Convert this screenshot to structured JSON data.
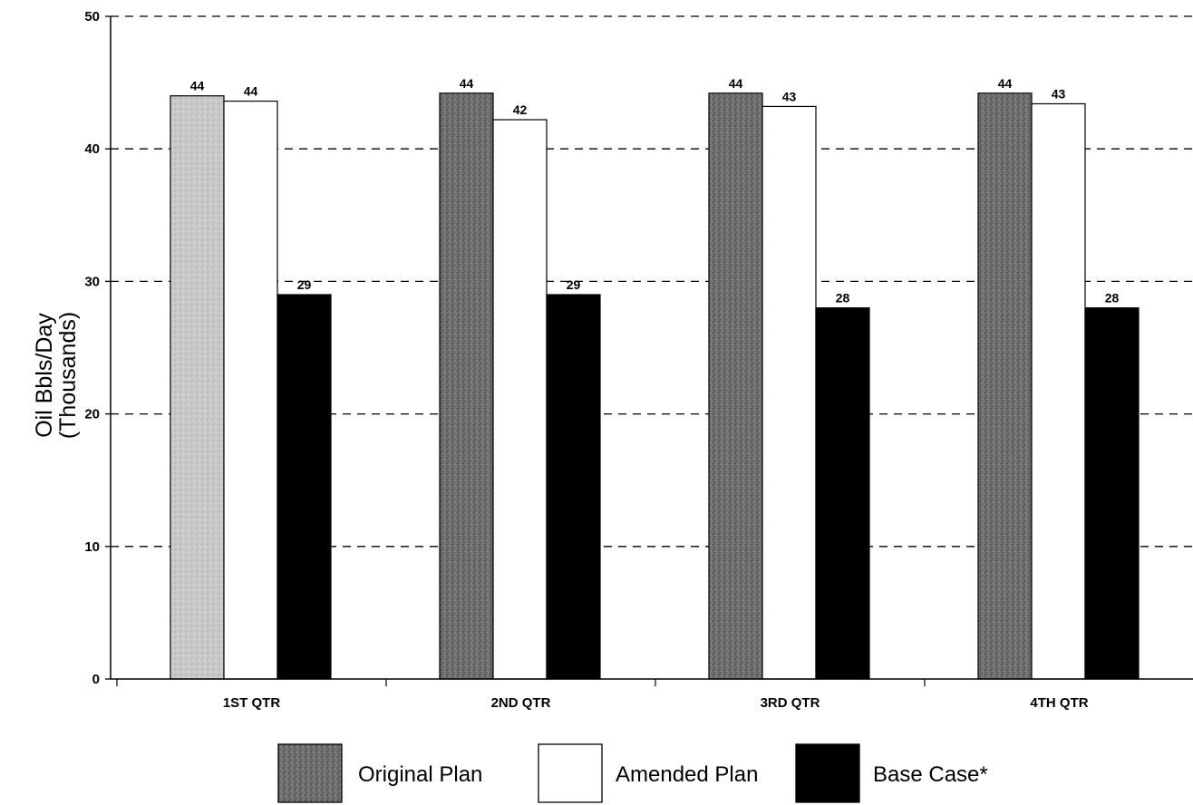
{
  "chart_data": {
    "type": "bar",
    "categories": [
      "1ST QTR",
      "2ND QTR",
      "3RD QTR",
      "4TH QTR"
    ],
    "series": [
      {
        "name": "Original Plan",
        "values": [
          44,
          44.2,
          44.2,
          44.2
        ],
        "labels": [
          "44",
          "44",
          "44",
          "44"
        ],
        "color": "#8a8a8a"
      },
      {
        "name": "Amended Plan",
        "values": [
          43.6,
          42.2,
          43.2,
          43.4
        ],
        "labels": [
          "44",
          "42",
          "43",
          "43"
        ],
        "color": "#ffffff"
      },
      {
        "name": "Base Case*",
        "values": [
          29,
          29,
          28,
          28
        ],
        "labels": [
          "29",
          "29",
          "28",
          "28"
        ],
        "color": "#000000"
      }
    ],
    "ylabel_line1": "Oil Bbls/Day",
    "ylabel_line2": "(Thousands)",
    "ylim": [
      0,
      50
    ],
    "yticks": [
      "0",
      "10",
      "20",
      "30",
      "40",
      "50"
    ],
    "grid": "dashed horizontal",
    "legend_position": "bottom"
  }
}
